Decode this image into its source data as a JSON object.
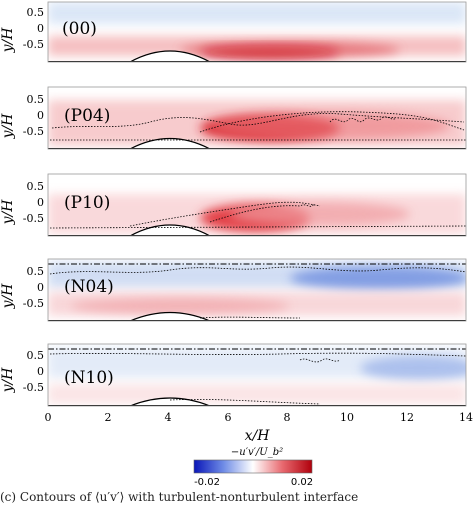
{
  "figure": {
    "y_axis_label": "y/H",
    "x_axis_label": "x/H",
    "x_ticks": [
      "0",
      "2",
      "4",
      "6",
      "8",
      "10",
      "12",
      "14"
    ],
    "y_ticks": [
      "0.5",
      "0",
      "-0.5"
    ],
    "panels": [
      {
        "label": "(00)"
      },
      {
        "label": "(P04)"
      },
      {
        "label": "(P10)"
      },
      {
        "label": "(N04)"
      },
      {
        "label": "(N10)"
      }
    ],
    "colorbar": {
      "label": "−u′v′/U_b²",
      "min_label": "-0.02",
      "max_label": "0.02",
      "colors": {
        "negative": "#0a16b8",
        "zero": "#ffffff",
        "positive": "#b0000c"
      }
    },
    "caption_fragment": "(c) Contours of ⟨u′v′⟩ with turbulent-nonturbulent interface"
  },
  "chart_data": {
    "type": "heatmap",
    "xlabel": "x/H",
    "ylabel": "y/H",
    "xlim": [
      0,
      14
    ],
    "ylim": [
      -1,
      1
    ],
    "colorbar_range": [
      -0.02,
      0.02
    ],
    "panels": [
      "(00)",
      "(P04)",
      "(P10)",
      "(N04)",
      "(N10)"
    ]
  }
}
